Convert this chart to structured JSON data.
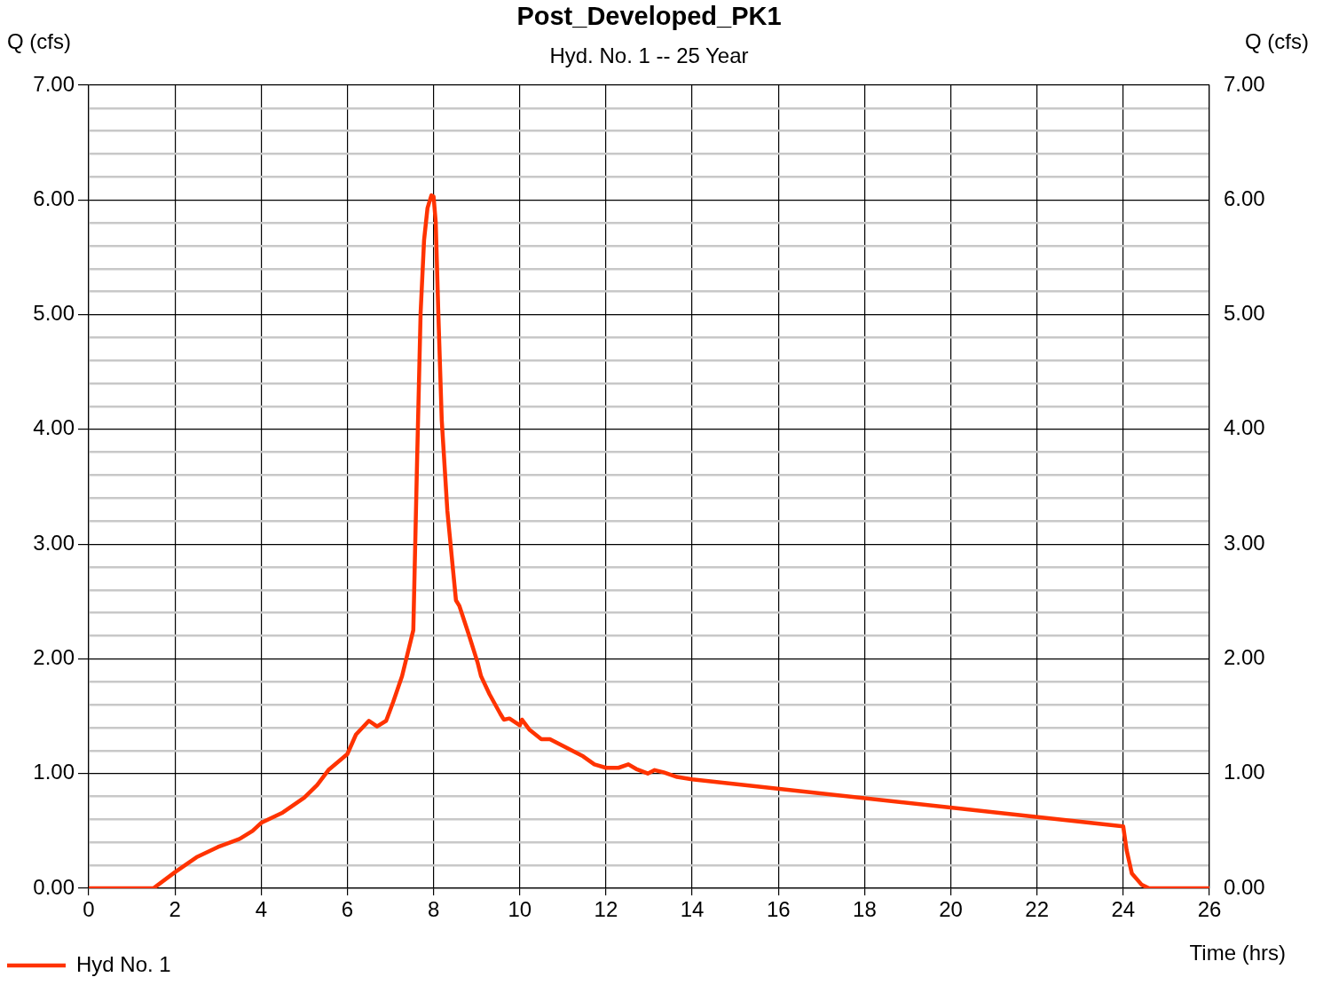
{
  "chart_data": {
    "type": "line",
    "title": "Post_Developed_PK1",
    "subtitle": "Hyd. No. 1 -- 25 Year",
    "xlabel": "Time (hrs)",
    "ylabel": "Q (cfs)",
    "y2label": "Q (cfs)",
    "xlim": [
      0,
      26
    ],
    "xticks": [
      0,
      2,
      4,
      6,
      8,
      10,
      12,
      14,
      16,
      18,
      20,
      22,
      24,
      26
    ],
    "ylim": [
      0,
      7
    ],
    "yticks": [
      {
        "value": 0,
        "label": "0.00"
      },
      {
        "value": 0.2,
        "label": null
      },
      {
        "value": 0.4,
        "label": null
      },
      {
        "value": 0.6,
        "label": null
      },
      {
        "value": 0.8,
        "label": null
      },
      {
        "value": 1,
        "label": "1.00"
      },
      {
        "value": 1.2,
        "label": null
      },
      {
        "value": 1.4,
        "label": null
      },
      {
        "value": 1.6,
        "label": null
      },
      {
        "value": 1.8,
        "label": null
      },
      {
        "value": 2,
        "label": "2.00"
      },
      {
        "value": 2.2,
        "label": null
      },
      {
        "value": 2.4,
        "label": null
      },
      {
        "value": 2.6,
        "label": null
      },
      {
        "value": 2.8,
        "label": null
      },
      {
        "value": 3,
        "label": "3.00"
      },
      {
        "value": 3.2,
        "label": null
      },
      {
        "value": 3.4,
        "label": null
      },
      {
        "value": 3.6,
        "label": null
      },
      {
        "value": 3.8,
        "label": null
      },
      {
        "value": 4,
        "label": "4.00"
      },
      {
        "value": 4.2,
        "label": null
      },
      {
        "value": 4.4,
        "label": null
      },
      {
        "value": 4.6,
        "label": null
      },
      {
        "value": 4.8,
        "label": null
      },
      {
        "value": 5,
        "label": "5.00"
      },
      {
        "value": 5.2,
        "label": null
      },
      {
        "value": 5.4,
        "label": null
      },
      {
        "value": 5.6,
        "label": null
      },
      {
        "value": 5.8,
        "label": null
      },
      {
        "value": 6,
        "label": "6.00"
      },
      {
        "value": 6.2,
        "label": null
      },
      {
        "value": 6.4,
        "label": null
      },
      {
        "value": 6.6,
        "label": null
      },
      {
        "value": 6.8,
        "label": null
      },
      {
        "value": 7,
        "label": "7.00"
      }
    ],
    "y2lim": [
      0,
      7
    ],
    "y2ticks": [
      {
        "value": 0,
        "label": "0.00"
      },
      {
        "value": 0.2,
        "label": null
      },
      {
        "value": 0.4,
        "label": null
      },
      {
        "value": 0.6,
        "label": null
      },
      {
        "value": 0.8,
        "label": null
      },
      {
        "value": 1,
        "label": "1.00"
      },
      {
        "value": 1.2,
        "label": null
      },
      {
        "value": 1.4,
        "label": null
      },
      {
        "value": 1.6,
        "label": null
      },
      {
        "value": 1.8,
        "label": null
      },
      {
        "value": 2,
        "label": "2.00"
      },
      {
        "value": 2.2,
        "label": null
      },
      {
        "value": 2.4,
        "label": null
      },
      {
        "value": 2.6,
        "label": null
      },
      {
        "value": 2.8,
        "label": null
      },
      {
        "value": 3,
        "label": "3.00"
      },
      {
        "value": 3.2,
        "label": null
      },
      {
        "value": 3.4,
        "label": null
      },
      {
        "value": 3.6,
        "label": null
      },
      {
        "value": 3.8,
        "label": null
      },
      {
        "value": 4,
        "label": "4.00"
      },
      {
        "value": 4.2,
        "label": null
      },
      {
        "value": 4.4,
        "label": null
      },
      {
        "value": 4.6,
        "label": null
      },
      {
        "value": 4.8,
        "label": null
      },
      {
        "value": 5,
        "label": "5.00"
      },
      {
        "value": 5.2,
        "label": null
      },
      {
        "value": 5.4,
        "label": null
      },
      {
        "value": 5.6,
        "label": null
      },
      {
        "value": 5.8,
        "label": null
      },
      {
        "value": 6,
        "label": "6.00"
      },
      {
        "value": 6.2,
        "label": null
      },
      {
        "value": 6.4,
        "label": null
      },
      {
        "value": 6.6,
        "label": null
      },
      {
        "value": 6.8,
        "label": null
      },
      {
        "value": 7,
        "label": "7.00"
      }
    ],
    "grid": true,
    "legend": "bottom left",
    "marker": "none",
    "line_style": "solid",
    "series": [
      {
        "name": "Hyd No. 1",
        "color": "#ff3300",
        "x": [
          0,
          1.5,
          2,
          2.5,
          3,
          3.5,
          3.8,
          4,
          4.5,
          5,
          5.3,
          5.56,
          6,
          6.2,
          6.5,
          6.69,
          6.9,
          7.06,
          7.27,
          7.53,
          7.62,
          7.66,
          7.7,
          7.78,
          7.86,
          7.95,
          8,
          8.05,
          8.11,
          8.19,
          8.32,
          8.44,
          8.52,
          8.6,
          8.81,
          9.02,
          9.1,
          9.3,
          9.55,
          9.63,
          9.76,
          10,
          10.05,
          10.23,
          10.5,
          10.7,
          11.47,
          11.73,
          12,
          12.29,
          12.52,
          12.7,
          12.97,
          13.13,
          13.34,
          13.65,
          14,
          24,
          24.08,
          24.2,
          24.43,
          24.6,
          26
        ],
        "values": [
          0,
          0,
          0.14,
          0.27,
          0.36,
          0.43,
          0.5,
          0.57,
          0.66,
          0.79,
          0.9,
          1.03,
          1.17,
          1.34,
          1.46,
          1.41,
          1.46,
          1.62,
          1.85,
          2.25,
          3.76,
          4.39,
          5.02,
          5.65,
          5.93,
          6.04,
          6.03,
          5.81,
          5.02,
          4.08,
          3.29,
          2.82,
          2.51,
          2.46,
          2.22,
          1.97,
          1.85,
          1.69,
          1.52,
          1.47,
          1.48,
          1.42,
          1.47,
          1.38,
          1.3,
          1.3,
          1.15,
          1.08,
          1.05,
          1.05,
          1.08,
          1.04,
          1,
          1.03,
          1.01,
          0.97,
          0.95,
          0.54,
          0.33,
          0.13,
          0.03,
          0,
          0
        ]
      }
    ]
  }
}
